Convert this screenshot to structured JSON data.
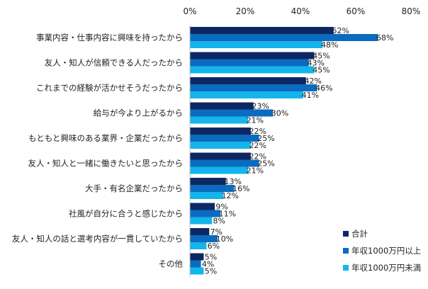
{
  "chart_data": {
    "type": "bar",
    "orientation": "horizontal",
    "x_ticks": [
      "0%",
      "20%",
      "40%",
      "60%",
      "80%"
    ],
    "xlim": [
      0,
      80
    ],
    "categories": [
      "事業内容・仕事内容に興味を持ったから",
      "友人・知人が信頼できる人だったから",
      "これまでの経験が活かせそうだったから",
      "給与が今より上がるから",
      "もともと興味のある業界・企業だったから",
      "友人・知人と一緒に働きたいと思ったから",
      "大手・有名企業だったから",
      "社風が自分に合うと感じたから",
      "友人・知人の話と選考内容が一貫していたから",
      "その他"
    ],
    "series": [
      {
        "name": "合計",
        "color": "#0d2763",
        "values": [
          52,
          45,
          42,
          23,
          22,
          22,
          13,
          9,
          7,
          5
        ]
      },
      {
        "name": "年収1000万円以上",
        "color": "#0b6bbf",
        "values": [
          68,
          43,
          46,
          30,
          25,
          25,
          16,
          11,
          10,
          4
        ]
      },
      {
        "name": "年収1000万円未満",
        "color": "#14b4ec",
        "values": [
          48,
          45,
          41,
          21,
          22,
          21,
          12,
          8,
          6,
          5
        ]
      }
    ],
    "value_suffix": "%",
    "grid": false,
    "legend_position": "bottom-right"
  }
}
